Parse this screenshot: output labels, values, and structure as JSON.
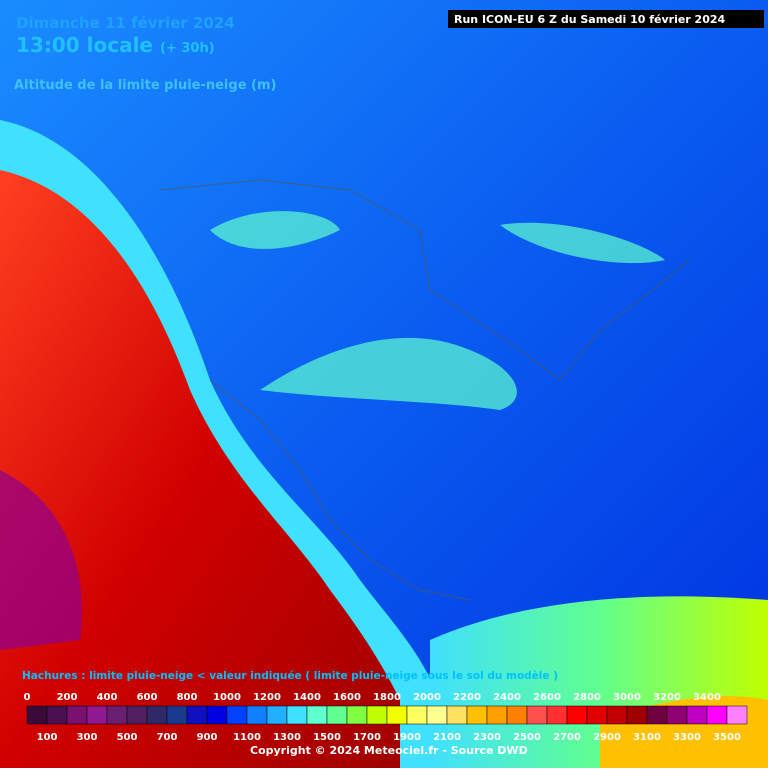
{
  "header": {
    "date": "Dimanche 11 février 2024",
    "time": "13:00 locale",
    "lead": "(+ 30h)",
    "parameter": "Altitude de la limite pluie-neige (m)",
    "run": "Run ICON-EU 6 Z du Samedi 10 février 2024"
  },
  "legend": {
    "note": "Hachures : limite pluie-neige < valeur indiquée ( limite pluie-neige sous le sol du modèle )",
    "levels": [
      0,
      100,
      200,
      300,
      400,
      500,
      600,
      700,
      800,
      900,
      1000,
      1100,
      1200,
      1300,
      1400,
      1500,
      1600,
      1700,
      1800,
      1900,
      2000,
      2100,
      2200,
      2300,
      2400,
      2500,
      2600,
      2700,
      2800,
      2900,
      3000,
      3100,
      3200,
      3300,
      3400,
      3500
    ],
    "colors": [
      "#3a0a3a",
      "#4a1050",
      "#7a1070",
      "#901890",
      "#6a2070",
      "#502060",
      "#302868",
      "#1a3a90",
      "#1010c0",
      "#0000e0",
      "#0040ff",
      "#1080ff",
      "#20b0ff",
      "#40e0ff",
      "#60ffd0",
      "#60ff90",
      "#80ff40",
      "#c0ff00",
      "#f0ff00",
      "#ffff60",
      "#ffff90",
      "#ffe060",
      "#ffc000",
      "#ffa000",
      "#ff8000",
      "#ff5050",
      "#ff3030",
      "#ff0000",
      "#e00000",
      "#c00000",
      "#a00000",
      "#700040",
      "#900070",
      "#c000c0",
      "#ff00ff",
      "#ff80ff"
    ]
  },
  "footer": {
    "copyright": "Copyright © 2024 Meteociel.fr - Source DWD"
  }
}
